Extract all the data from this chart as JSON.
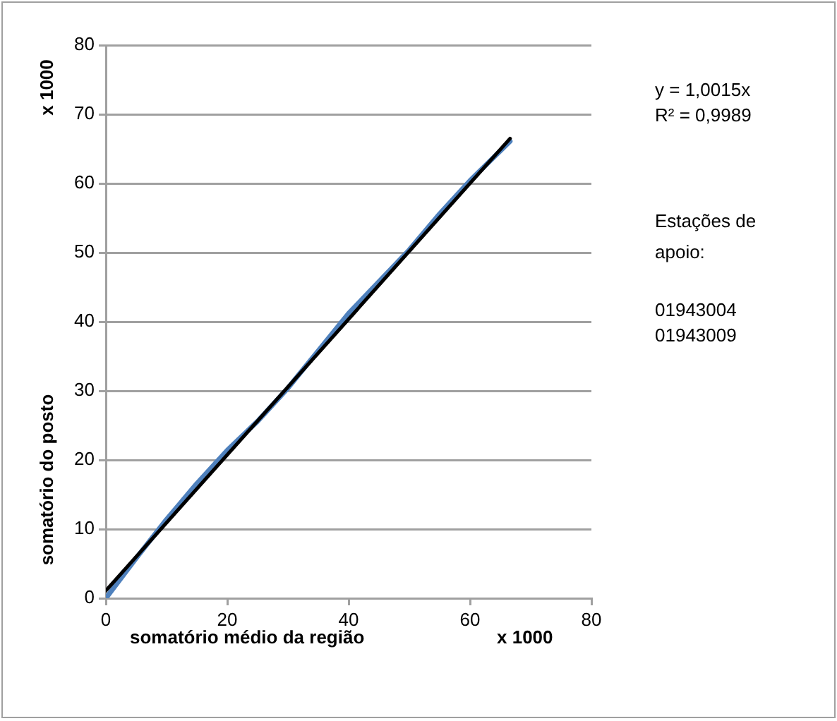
{
  "chart_data": {
    "type": "line",
    "xlabel": "somatório médio da região",
    "ylabel": "somatório do posto",
    "annotations": [
      "x 1000",
      "x 1000",
      "y = 1,0015x",
      "R² = 0,9989",
      "Estações de apoio:",
      "01943004",
      "01943009"
    ],
    "series": [
      {
        "color": "#4f81bd",
        "x": [
          0,
          5,
          10,
          15,
          20,
          25,
          30,
          35,
          40,
          45,
          50,
          55,
          60,
          66.6
        ],
        "values": [
          0,
          5.8,
          11.4,
          16.6,
          21.4,
          25.6,
          30.4,
          35.8,
          41.2,
          45.8,
          50.4,
          55.6,
          60.4,
          66.1
        ]
      },
      {
        "color": "#000000",
        "x": [
          0,
          66.6
        ],
        "values": [
          1.1,
          66.5
        ]
      }
    ],
    "xlim": [
      0,
      80
    ],
    "xticks": [
      0,
      20,
      40,
      60,
      80
    ],
    "ylim": [
      0,
      80
    ],
    "yticks": [
      0,
      10,
      20,
      30,
      40,
      50,
      60,
      70,
      80
    ],
    "grid": "y",
    "legend": false,
    "marker": "none",
    "line_style": "solid"
  }
}
